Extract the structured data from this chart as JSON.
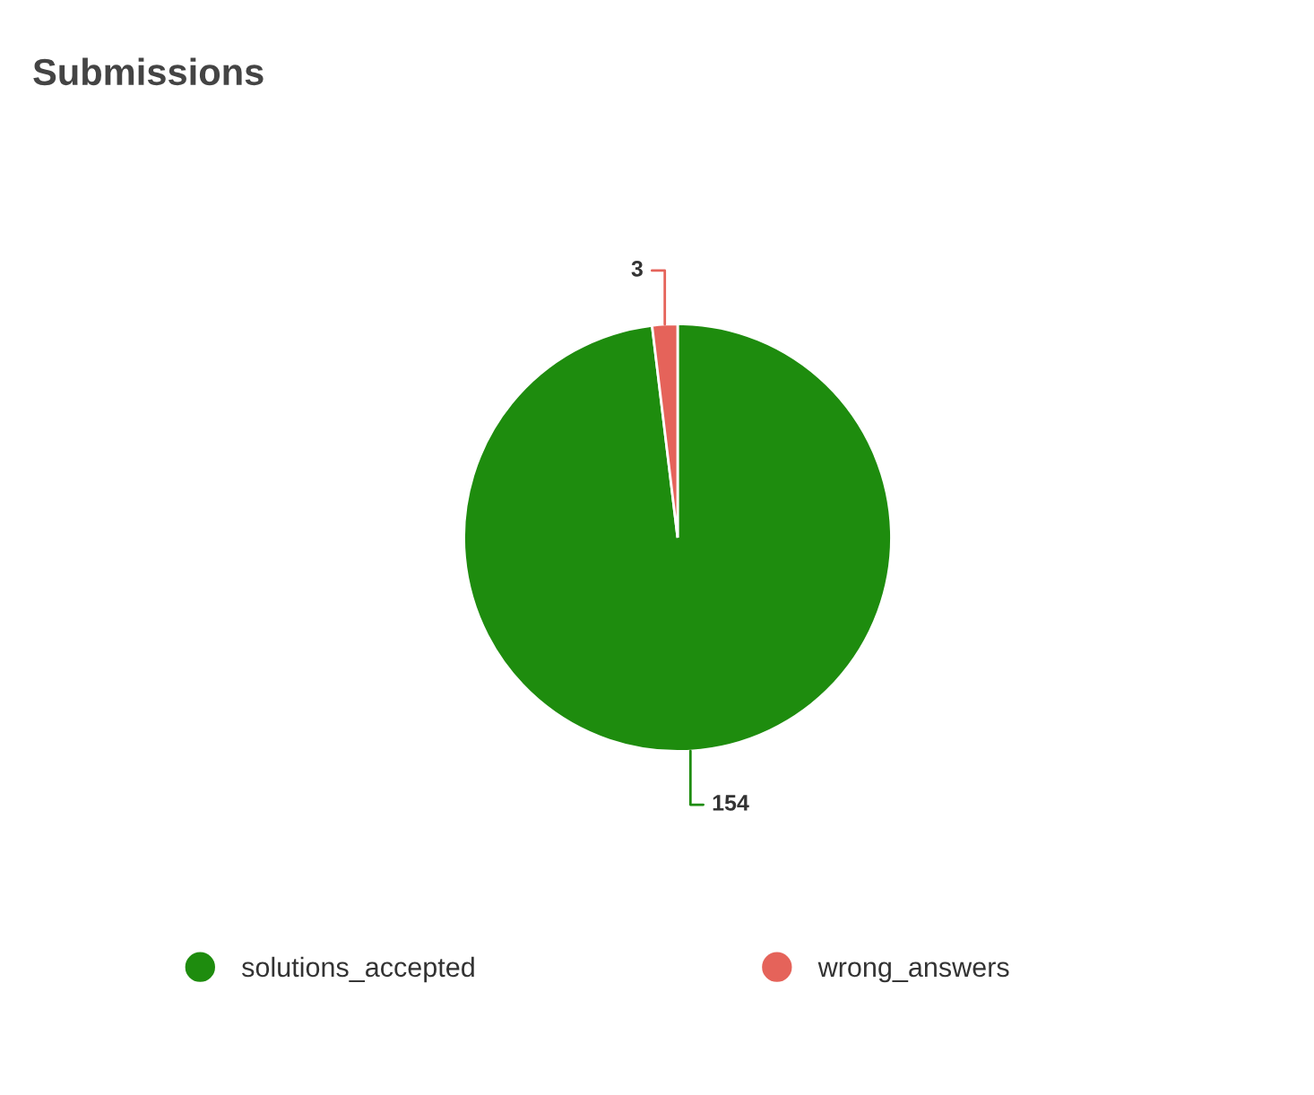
{
  "chart_data": {
    "type": "pie",
    "title": "Submissions",
    "categories": [
      "solutions_accepted",
      "wrong_answers"
    ],
    "values": [
      154,
      3
    ],
    "colors": [
      "#1e8c0e",
      "#e5635a"
    ],
    "data_labels": true,
    "legend": "bottom"
  }
}
